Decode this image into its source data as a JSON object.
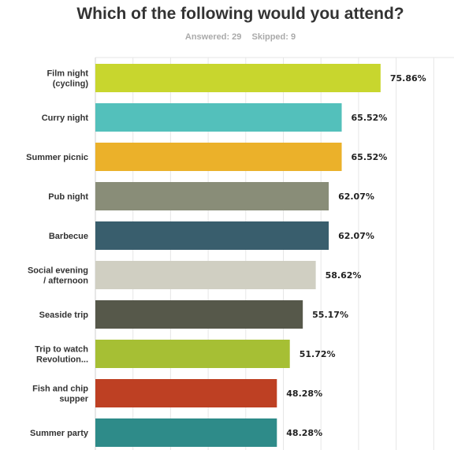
{
  "header": {
    "title": "Which of the following would you attend?",
    "answered": "Answered: 29",
    "skipped": "Skipped: 9"
  },
  "chart_data": {
    "type": "bar",
    "orientation": "horizontal",
    "title": "Which of the following would you attend?",
    "categories": [
      [
        "Film night",
        "(cycling)"
      ],
      [
        "Curry night"
      ],
      [
        "Summer picnic"
      ],
      [
        "Pub night"
      ],
      [
        "Barbecue"
      ],
      [
        "Social evening",
        "/ afternoon"
      ],
      [
        "Seaside trip"
      ],
      [
        "Trip to watch",
        "Revolution..."
      ],
      [
        "Fish and chip",
        "supper"
      ],
      [
        "Summer party"
      ]
    ],
    "values": [
      75.86,
      65.52,
      65.52,
      62.07,
      62.07,
      58.62,
      55.17,
      51.72,
      48.28,
      48.28
    ],
    "value_labels": [
      "75.86%",
      "65.52%",
      "65.52%",
      "62.07%",
      "62.07%",
      "58.62%",
      "55.17%",
      "51.72%",
      "48.28%",
      "48.28%"
    ],
    "colors": [
      "#c8d62e",
      "#53c0bb",
      "#ebb12a",
      "#898d78",
      "#395e6d",
      "#d0cfc2",
      "#56584a",
      "#a6bf34",
      "#be4023",
      "#2e8b89"
    ],
    "xlim": [
      0,
      100
    ],
    "grid": true
  }
}
